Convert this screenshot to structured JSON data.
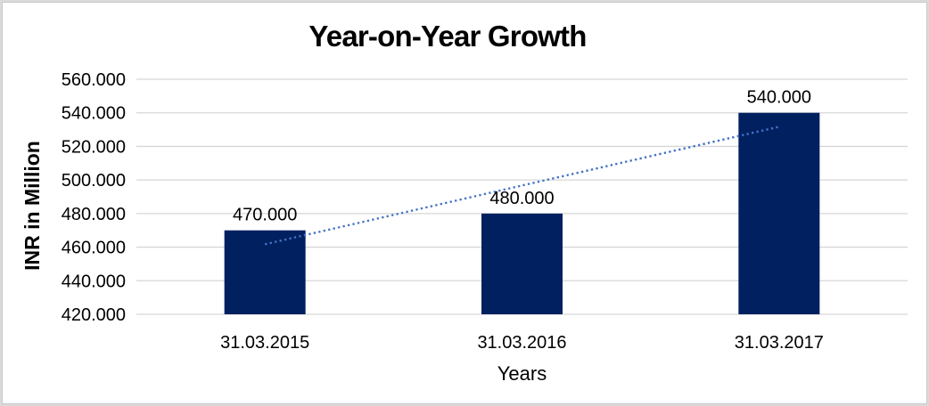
{
  "window": {
    "background_color": "#FFFFFF",
    "frame_border_color": "#DADADA"
  },
  "chart_data": {
    "type": "bar",
    "title": "Year-on-Year Growth",
    "xlabel": "Years",
    "ylabel": "INR in Million",
    "categories": [
      "31.03.2015",
      "31.03.2016",
      "31.03.2017"
    ],
    "values": [
      470,
      480,
      540
    ],
    "value_labels": [
      "470.000",
      "480.000",
      "540.000"
    ],
    "ylim": [
      420,
      560
    ],
    "ytick_step": 20,
    "ytick_labels": [
      "420.000",
      "440.000",
      "460.000",
      "480.000",
      "500.000",
      "520.000",
      "540.000",
      "560.000"
    ],
    "grid": true,
    "legend": "none",
    "bar_color": "#002060",
    "gridline_color": "#D7D7D7",
    "label_color": "#000000",
    "trendline": {
      "type": "linear",
      "style": "dotted",
      "color": "#4472C4",
      "start_value": 461.7,
      "end_value": 531.7
    }
  }
}
